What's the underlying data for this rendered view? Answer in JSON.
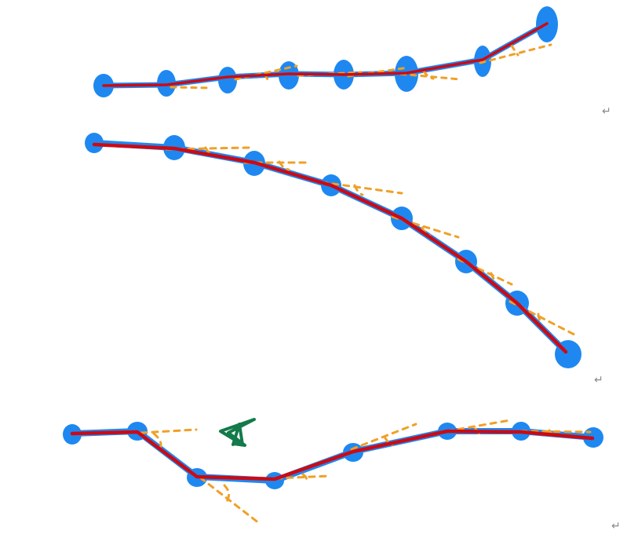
{
  "colors": {
    "blue": "#1E88F0",
    "red": "#CC0A14",
    "orange": "#F0A028",
    "green": "#137A4A",
    "mark": "#8A8A8A"
  },
  "paragraph_mark": "↵",
  "strokes": [
    {
      "name": "stroke-top"
    },
    {
      "name": "stroke-middle"
    },
    {
      "name": "stroke-bottom"
    }
  ],
  "star": {
    "icon": "star-icon"
  }
}
